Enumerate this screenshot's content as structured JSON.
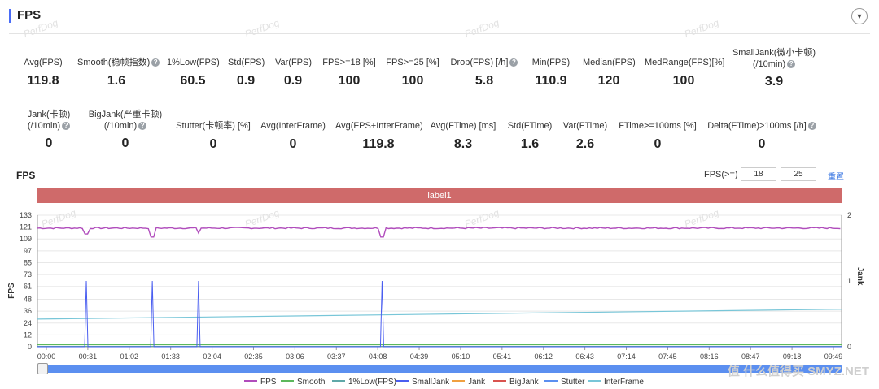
{
  "header": {
    "title": "FPS",
    "watermark": "PerfDog"
  },
  "stats_row1": [
    {
      "label": "Avg(FPS)",
      "value": "119.8",
      "help": false
    },
    {
      "label": "Smooth(稳帧指数)",
      "value": "1.6",
      "help": true
    },
    {
      "label": "1%Low(FPS)",
      "value": "60.5",
      "help": false
    },
    {
      "label": "Std(FPS)",
      "value": "0.9",
      "help": false
    },
    {
      "label": "Var(FPS)",
      "value": "0.9",
      "help": false
    },
    {
      "label": "FPS>=18 [%]",
      "value": "100",
      "help": false
    },
    {
      "label": "FPS>=25 [%]",
      "value": "100",
      "help": false
    },
    {
      "label": "Drop(FPS) [/h]",
      "value": "5.8",
      "help": true
    },
    {
      "label": "Min(FPS)",
      "value": "110.9",
      "help": false
    },
    {
      "label": "Median(FPS)",
      "value": "120",
      "help": false
    },
    {
      "label": "MedRange(FPS)[%]",
      "value": "100",
      "help": false
    },
    {
      "label": "SmallJank(微小卡顿)",
      "label2": "(/10min)",
      "value": "3.9",
      "help": true
    }
  ],
  "stats_row2": [
    {
      "label": "Jank(卡顿)",
      "label2": "(/10min)",
      "value": "0",
      "help": true
    },
    {
      "label": "BigJank(严重卡顿)",
      "label2": "(/10min)",
      "value": "0",
      "help": true
    },
    {
      "label": "Stutter(卡顿率) [%]",
      "value": "0",
      "help": false
    },
    {
      "label": "Avg(InterFrame)",
      "value": "0",
      "help": false
    },
    {
      "label": "Avg(FPS+InterFrame)",
      "value": "119.8",
      "help": false
    },
    {
      "label": "Avg(FTime) [ms]",
      "value": "8.3",
      "help": false
    },
    {
      "label": "Std(FTime)",
      "value": "1.6",
      "help": false
    },
    {
      "label": "Var(FTime)",
      "value": "2.6",
      "help": false
    },
    {
      "label": "FTime>=100ms [%]",
      "value": "0",
      "help": false
    },
    {
      "label": "Delta(FTime)>100ms [/h]",
      "value": "0",
      "help": true
    }
  ],
  "controls": {
    "chart_title": "FPS",
    "fps_ge_label": "FPS(>=)",
    "fps_ge_1": "18",
    "fps_ge_2": "25",
    "reset_label": "重置"
  },
  "band_label": "label1",
  "brand_mark": "值 什么值得买 SMYZ.NET",
  "chart_data": {
    "type": "line",
    "ylabel": "FPS",
    "y2label": "Jank",
    "y_ticks": [
      0,
      12,
      24,
      36,
      48,
      61,
      73,
      85,
      97,
      109,
      121,
      133
    ],
    "y2_ticks": [
      0,
      1,
      2
    ],
    "ylim": [
      0,
      133
    ],
    "y2lim": [
      0,
      2
    ],
    "x_ticks": [
      "00:00",
      "00:31",
      "01:02",
      "01:33",
      "02:04",
      "02:35",
      "03:06",
      "03:37",
      "04:08",
      "04:39",
      "05:10",
      "05:41",
      "06:12",
      "06:43",
      "07:14",
      "07:45",
      "08:16",
      "08:47",
      "09:18",
      "09:49"
    ],
    "x_range_seconds": [
      0,
      609
    ],
    "series": [
      {
        "name": "FPS",
        "color": "#b04cbc",
        "axis": "left",
        "baseline": 120,
        "dips": [
          {
            "t": 37,
            "v": 114
          },
          {
            "t": 87,
            "v": 111
          },
          {
            "t": 122,
            "v": 115
          },
          {
            "t": 261,
            "v": 111
          }
        ]
      },
      {
        "name": "Smooth",
        "color": "#5cb85c",
        "axis": "left",
        "baseline": 1.6
      },
      {
        "name": "1%Low(FPS)",
        "color": "#5fa8a8",
        "axis": "left",
        "baseline": 0
      },
      {
        "name": "SmallJank",
        "color": "#4a5ef0",
        "axis": "right",
        "spikes": [
          37,
          87,
          122,
          261
        ],
        "spike_value": 1
      },
      {
        "name": "Jank",
        "color": "#f0a040",
        "axis": "right",
        "baseline": 0
      },
      {
        "name": "BigJank",
        "color": "#d9534f",
        "axis": "right",
        "baseline": 0
      },
      {
        "name": "Stutter",
        "color": "#5b8ff0",
        "axis": "left",
        "baseline": 0
      },
      {
        "name": "InterFrame",
        "color": "#78c6d8",
        "axis": "left",
        "start": 28,
        "end": 38
      }
    ]
  }
}
